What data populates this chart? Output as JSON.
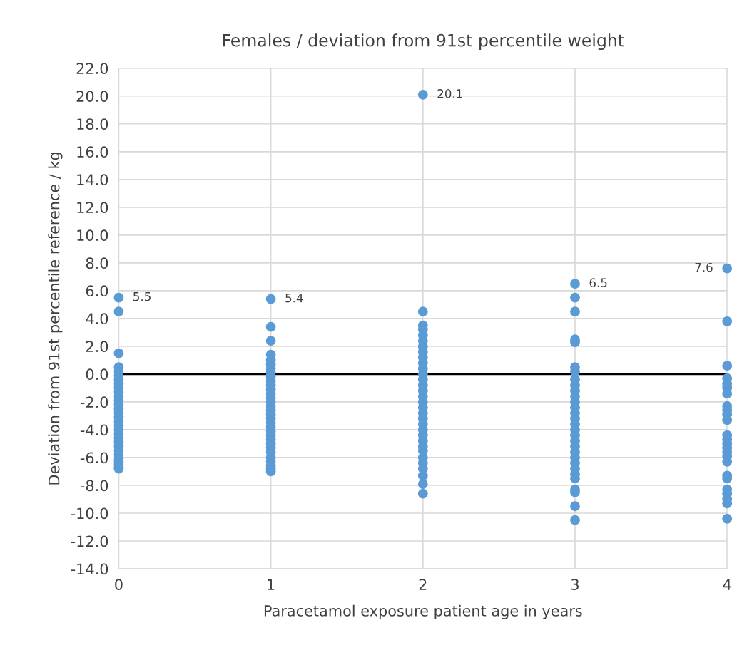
{
  "chart_data": {
    "type": "scatter",
    "title": "Females / deviation from 91st percentile weight",
    "xlabel": "Paracetamol exposure patient age in years",
    "ylabel": "Deviation from 91st percentile reference / kg",
    "series": [
      {
        "color": "#5b9bd5",
        "x": [
          0,
          0,
          0,
          0,
          0,
          0,
          0,
          0,
          0,
          0,
          0,
          0,
          0,
          0,
          0,
          0,
          0,
          0,
          0,
          0,
          0,
          0,
          0,
          0,
          0,
          0,
          0,
          0,
          0,
          0,
          1,
          1,
          1,
          1,
          1,
          1,
          1,
          1,
          1,
          1,
          1,
          1,
          1,
          1,
          1,
          1,
          1,
          1,
          1,
          1,
          1,
          1,
          1,
          1,
          1,
          1,
          1,
          1,
          1,
          1,
          1,
          1,
          2,
          2,
          2,
          2,
          2,
          2,
          2,
          2,
          2,
          2,
          2,
          2,
          2,
          2,
          2,
          2,
          2,
          2,
          2,
          2,
          2,
          2,
          2,
          2,
          2,
          2,
          2,
          2,
          2,
          2,
          2,
          2,
          3,
          3,
          3,
          3,
          3,
          3,
          3,
          3,
          3,
          3,
          3,
          3,
          3,
          3,
          3,
          3,
          3,
          3,
          3,
          3,
          3,
          3,
          3,
          3,
          3,
          3,
          3,
          3,
          3,
          3,
          4,
          4,
          4,
          4,
          4,
          4,
          4,
          4,
          4,
          4,
          4,
          4,
          4,
          4,
          4,
          4,
          4,
          4,
          4,
          4,
          4,
          4,
          4,
          4,
          4
        ],
        "values": [
          5.5,
          4.5,
          1.5,
          0.5,
          0.2,
          -0.1,
          -0.4,
          -0.7,
          -1.0,
          -1.3,
          -1.6,
          -1.9,
          -2.2,
          -2.5,
          -2.8,
          -3.1,
          -3.4,
          -3.7,
          -4.0,
          -4.3,
          -4.6,
          -4.9,
          -5.2,
          -5.5,
          -5.8,
          -6.1,
          -6.3,
          -6.5,
          -6.7,
          -6.8,
          5.4,
          3.4,
          2.4,
          1.4,
          1.0,
          0.7,
          0.4,
          0.1,
          -0.2,
          -0.5,
          -0.8,
          -1.1,
          -1.4,
          -1.7,
          -2.0,
          -2.3,
          -2.6,
          -2.9,
          -3.2,
          -3.5,
          -3.8,
          -4.1,
          -4.4,
          -4.7,
          -5.0,
          -5.3,
          -5.6,
          -6.0,
          -6.3,
          -6.6,
          -6.8,
          -7.0,
          20.1,
          4.5,
          3.5,
          3.2,
          2.8,
          2.4,
          2.0,
          1.6,
          1.2,
          0.8,
          0.4,
          0.0,
          -0.4,
          -0.8,
          -1.2,
          -1.6,
          -2.0,
          -2.4,
          -2.8,
          -3.2,
          -3.6,
          -4.0,
          -4.4,
          -4.8,
          -5.2,
          -5.5,
          -6.0,
          -6.4,
          -6.8,
          -7.3,
          -7.9,
          -8.6,
          6.5,
          5.5,
          4.5,
          2.5,
          2.3,
          0.5,
          0.2,
          -0.4,
          -0.8,
          -1.2,
          -1.6,
          -2.0,
          -2.4,
          -2.8,
          -3.2,
          -3.6,
          -4.0,
          -4.4,
          -4.8,
          -5.2,
          -5.6,
          -6.0,
          -6.4,
          -6.8,
          -7.2,
          -7.5,
          -8.3,
          -8.5,
          -9.5,
          -10.5,
          7.6,
          3.8,
          0.6,
          -0.3,
          -0.7,
          -1.0,
          -1.4,
          -2.3,
          -2.6,
          -2.9,
          -3.3,
          -4.4,
          -4.7,
          -5.0,
          -5.3,
          -5.6,
          -5.9,
          -6.3,
          -7.3,
          -7.5,
          -8.3,
          -8.6,
          -9.0,
          -9.3,
          -10.4
        ]
      }
    ],
    "xlim": [
      0,
      4
    ],
    "xticks": [
      0,
      1,
      2,
      3,
      4
    ],
    "ylim": [
      -14,
      22
    ],
    "yticks": [
      {
        "value": -14,
        "label": "-14.0"
      },
      {
        "value": -12,
        "label": "-12.0"
      },
      {
        "value": -10,
        "label": "-10.0"
      },
      {
        "value": -8,
        "label": "-8.0"
      },
      {
        "value": -6,
        "label": "-6.0"
      },
      {
        "value": -4,
        "label": "-4.0"
      },
      {
        "value": -2,
        "label": "-2.0"
      },
      {
        "value": 0,
        "label": "0.0"
      },
      {
        "value": 2,
        "label": "2.0"
      },
      {
        "value": 4,
        "label": "4.0"
      },
      {
        "value": 6,
        "label": "6.0"
      },
      {
        "value": 8,
        "label": "8.0"
      },
      {
        "value": 10,
        "label": "10.0"
      },
      {
        "value": 12,
        "label": "12.0"
      },
      {
        "value": 14,
        "label": "14.0"
      },
      {
        "value": 16,
        "label": "16.0"
      },
      {
        "value": 18,
        "label": "18.0"
      },
      {
        "value": 20,
        "label": "20.0"
      },
      {
        "value": 22,
        "label": "22.0"
      }
    ],
    "ref_lines": [
      {
        "axis": "y",
        "value": 0,
        "color": "#000000"
      }
    ],
    "annotations": [
      {
        "text": "5.5",
        "x": 0,
        "y": 5.5
      },
      {
        "text": "5.4",
        "x": 1,
        "y": 5.4
      },
      {
        "text": "20.1",
        "x": 2,
        "y": 20.1
      },
      {
        "text": "6.5",
        "x": 3,
        "y": 6.5
      },
      {
        "text": "7.6",
        "x": 4,
        "y": 7.6
      }
    ],
    "grid": true,
    "marker": "circle"
  }
}
